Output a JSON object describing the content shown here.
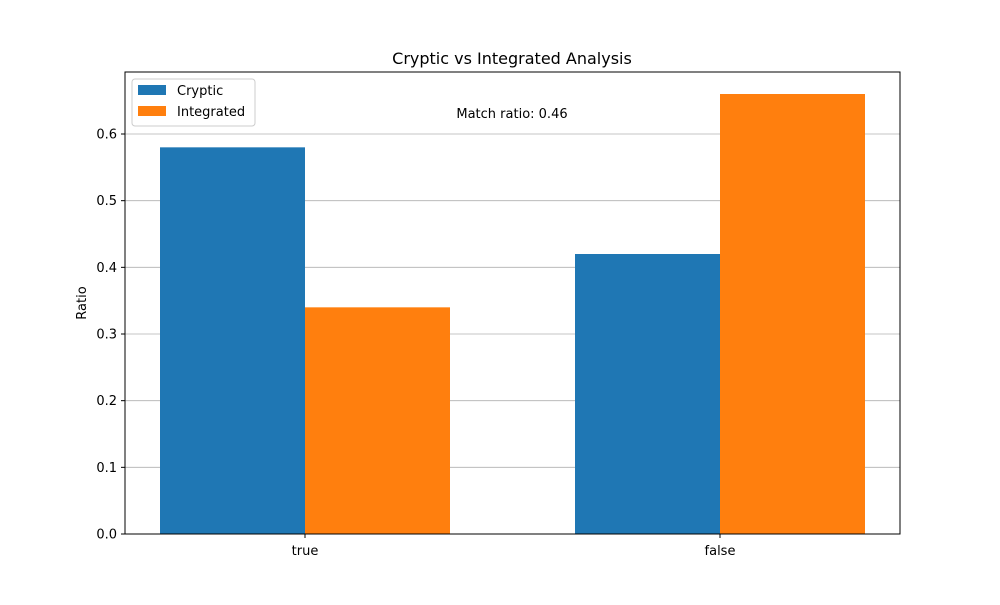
{
  "chart_data": {
    "type": "bar",
    "title": "Cryptic vs Integrated Analysis",
    "xlabel": "",
    "ylabel": "Ratio",
    "categories": [
      "true",
      "false"
    ],
    "series": [
      {
        "name": "Cryptic",
        "values": [
          0.58,
          0.42
        ],
        "color": "#1f77b4"
      },
      {
        "name": "Integrated",
        "values": [
          0.34,
          0.66
        ],
        "color": "#ff7f0e"
      }
    ],
    "ylim": [
      0,
      0.693
    ],
    "yticks": [
      0.0,
      0.1,
      0.2,
      0.3,
      0.4,
      0.5,
      0.6
    ],
    "ytick_labels": [
      "0.0",
      "0.1",
      "0.2",
      "0.3",
      "0.4",
      "0.5",
      "0.6"
    ],
    "grid": "horizontal",
    "legend_position": "top-left",
    "annotation": "Match ratio: 0.46"
  }
}
